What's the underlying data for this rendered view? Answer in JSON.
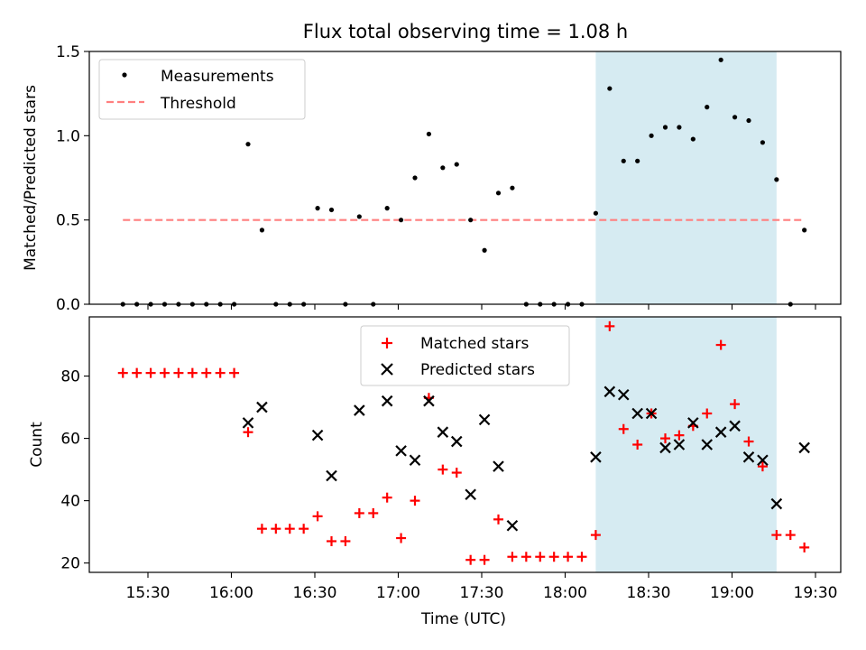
{
  "figure": {
    "title": "Flux total observing time = 1.08 h",
    "xlabel": "Time (UTC)",
    "x_ticks": [
      "15:30",
      "16:00",
      "16:30",
      "17:00",
      "17:30",
      "18:00",
      "18:30",
      "19:00",
      "19:30"
    ],
    "shade_color": "#add8e6",
    "shaded_interval": [
      "18:11",
      "19:16"
    ]
  },
  "chart_data": [
    {
      "type": "scatter",
      "ylabel": "Matched/Predicted stars",
      "ylim": [
        0,
        1.5
      ],
      "y_ticks": [
        "0.0",
        "0.5",
        "1.0",
        "1.5"
      ],
      "legend": {
        "placement": "upper-left",
        "entries": [
          "Measurements",
          "Threshold"
        ]
      },
      "x": [
        "15:21",
        "15:26",
        "15:31",
        "15:36",
        "15:41",
        "15:46",
        "15:51",
        "15:56",
        "16:01",
        "16:06",
        "16:11",
        "16:16",
        "16:21",
        "16:26",
        "16:31",
        "16:36",
        "16:41",
        "16:46",
        "16:51",
        "16:56",
        "17:01",
        "17:06",
        "17:11",
        "17:16",
        "17:21",
        "17:26",
        "17:31",
        "17:36",
        "17:41",
        "17:46",
        "17:51",
        "17:56",
        "18:01",
        "18:06",
        "18:11",
        "18:16",
        "18:21",
        "18:26",
        "18:31",
        "18:36",
        "18:41",
        "18:46",
        "18:51",
        "18:56",
        "19:01",
        "19:06",
        "19:11",
        "19:16",
        "19:21",
        "19:26"
      ],
      "series": [
        {
          "name": "Measurements",
          "color": "#000000",
          "values": [
            0,
            0,
            0,
            0,
            0,
            0,
            0,
            0,
            0,
            0.95,
            0.44,
            0,
            0,
            0,
            0.57,
            0.56,
            0,
            0.52,
            0,
            0.57,
            0.5,
            0.75,
            1.01,
            0.81,
            0.83,
            0.5,
            0.32,
            0.66,
            0.69,
            0,
            0,
            0,
            0,
            0,
            0.54,
            1.28,
            0.85,
            0.85,
            1.0,
            1.05,
            1.05,
            0.98,
            1.17,
            1.45,
            1.11,
            1.09,
            0.96,
            0.74,
            0,
            0.44
          ]
        },
        {
          "name": "Threshold",
          "color": "#ff7f7f",
          "style": "dashed",
          "x": [
            "15:21",
            "19:26"
          ],
          "values": [
            0.5,
            0.5
          ]
        }
      ]
    },
    {
      "type": "scatter",
      "ylabel": "Count",
      "ylim": [
        17,
        99
      ],
      "y_ticks": [
        "20",
        "40",
        "60",
        "80"
      ],
      "legend": {
        "placement": "upper-center",
        "entries": [
          "Matched stars",
          "Predicted stars"
        ]
      },
      "series": [
        {
          "name": "Matched stars",
          "marker": "plus",
          "color": "#ff0000",
          "x": [
            "15:21",
            "15:26",
            "15:31",
            "15:36",
            "15:41",
            "15:46",
            "15:51",
            "15:56",
            "16:01",
            "16:06",
            "16:11",
            "16:16",
            "16:21",
            "16:26",
            "16:31",
            "16:36",
            "16:41",
            "16:46",
            "16:51",
            "16:56",
            "17:01",
            "17:06",
            "17:11",
            "17:16",
            "17:21",
            "17:26",
            "17:31",
            "17:36",
            "17:41",
            "17:46",
            "17:51",
            "17:56",
            "18:01",
            "18:06",
            "18:11",
            "18:16",
            "18:21",
            "18:26",
            "18:31",
            "18:36",
            "18:41",
            "18:46",
            "18:51",
            "18:56",
            "19:01",
            "19:06",
            "19:11",
            "19:16",
            "19:21",
            "19:26"
          ],
          "values": [
            81,
            81,
            81,
            81,
            81,
            81,
            81,
            81,
            81,
            62,
            31,
            31,
            31,
            31,
            35,
            27,
            27,
            36,
            36,
            41,
            28,
            40,
            73,
            50,
            49,
            21,
            21,
            34,
            22,
            22,
            22,
            22,
            22,
            22,
            29,
            96,
            63,
            58,
            68,
            60,
            61,
            64,
            68,
            90,
            71,
            59,
            51,
            29,
            29,
            25
          ]
        },
        {
          "name": "Predicted stars",
          "marker": "x",
          "color": "#000000",
          "x": [
            "16:06",
            "16:11",
            "16:31",
            "16:36",
            "16:46",
            "16:56",
            "17:01",
            "17:06",
            "17:11",
            "17:16",
            "17:21",
            "17:26",
            "17:31",
            "17:36",
            "17:41",
            "18:11",
            "18:16",
            "18:21",
            "18:26",
            "18:31",
            "18:36",
            "18:41",
            "18:46",
            "18:51",
            "18:56",
            "19:01",
            "19:06",
            "19:11",
            "19:16",
            "19:26"
          ],
          "values": [
            65,
            70,
            61,
            48,
            69,
            72,
            56,
            53,
            72,
            62,
            59,
            42,
            66,
            51,
            32,
            54,
            75,
            74,
            68,
            68,
            57,
            58,
            65,
            58,
            62,
            64,
            54,
            53,
            39,
            57
          ]
        }
      ]
    }
  ]
}
